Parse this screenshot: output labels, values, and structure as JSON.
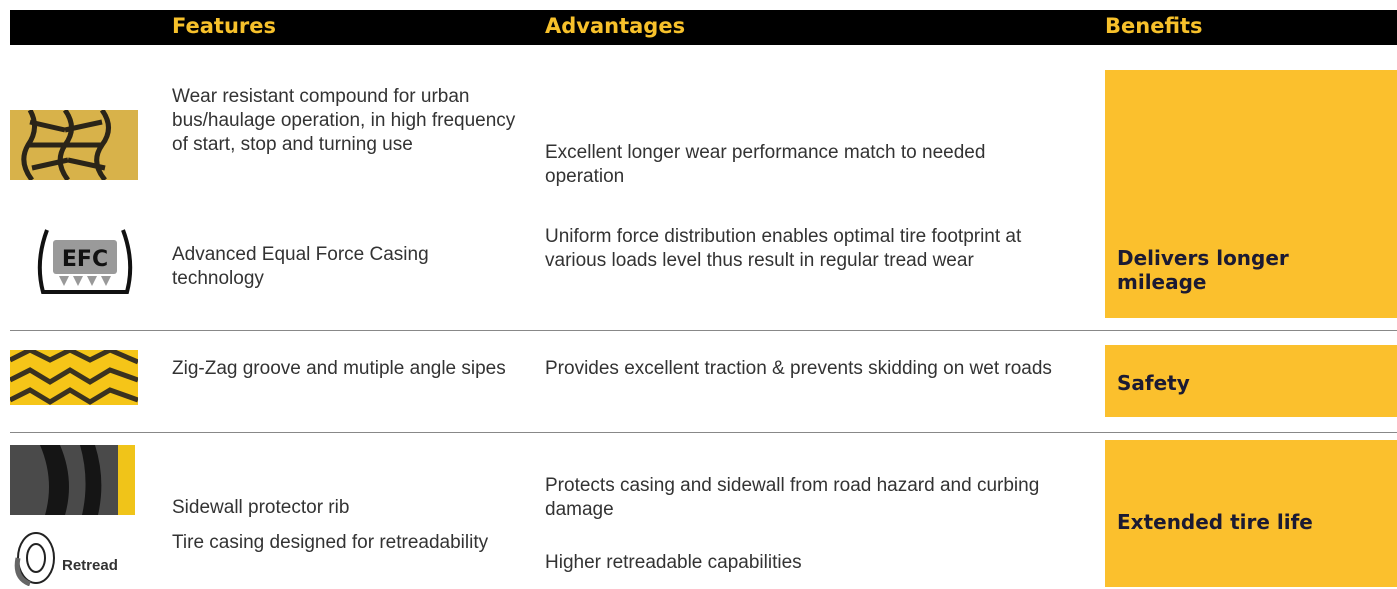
{
  "header": {
    "columns": [
      "Features",
      "Advantages",
      "Benefits"
    ]
  },
  "groups": [
    {
      "benefit": "Delivers longer mileage",
      "rows": [
        {
          "feature": "Wear resistant compound for urban bus/haulage operation, in high frequency of start, stop and turning use",
          "advantage": "Excellent longer wear performance match to needed operation"
        },
        {
          "icon_text": "EFC",
          "feature": "Advanced Equal Force Casing technology",
          "advantage": "Uniform force distribution enables optimal tire footprint at various loads level thus result in regular tread wear"
        }
      ]
    },
    {
      "benefit": "Safety",
      "rows": [
        {
          "feature": "Zig-Zag groove and mutiple angle sipes",
          "advantage": "Provides excellent traction & prevents skidding on wet roads"
        }
      ]
    },
    {
      "benefit": "Extended tire life",
      "rows": [
        {
          "feature": "Sidewall protector rib",
          "advantage": "Protects casing and sidewall from road hazard and curbing damage"
        },
        {
          "icon_text": "Retread",
          "feature": "Tire casing designed for retreadability",
          "advantage": "Higher retreadable capabilities"
        }
      ]
    }
  ]
}
